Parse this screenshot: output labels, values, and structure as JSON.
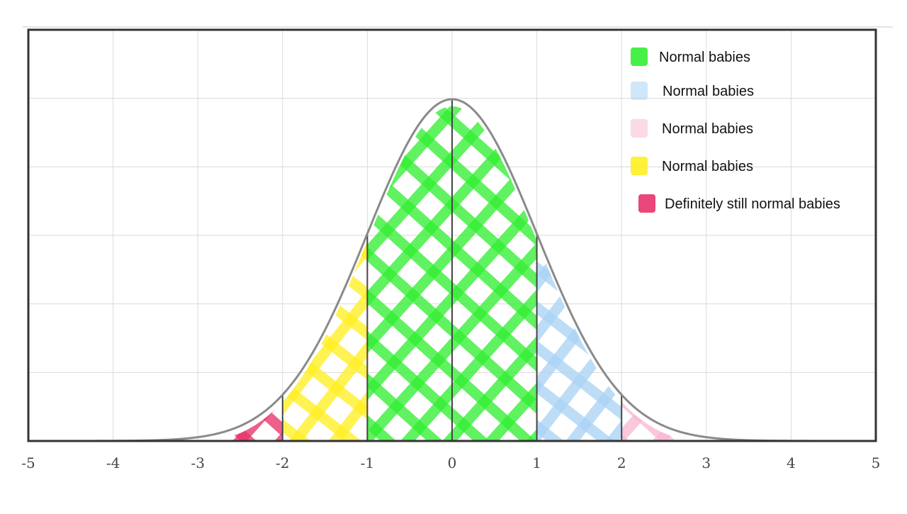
{
  "chart_data": {
    "type": "area",
    "title": "",
    "xlabel": "",
    "ylabel": "",
    "xlim": [
      -5,
      5
    ],
    "ylim": [
      0,
      0.48
    ],
    "x_ticks": [
      -5,
      -4,
      -3,
      -2,
      -1,
      0,
      1,
      2,
      3,
      4,
      5
    ],
    "x_tick_labels": [
      "-5",
      "-4",
      "-3",
      "-2",
      "-1",
      "0",
      "1",
      "2",
      "3",
      "4",
      "5"
    ],
    "y_gridlines": [
      0.08,
      0.16,
      0.24,
      0.32,
      0.4
    ],
    "grid": true,
    "curve": "standard normal density",
    "std_dev_lines": [
      -2,
      -1,
      0,
      1,
      2
    ],
    "regions": [
      {
        "name": "Normal babies",
        "x_range": [
          -1,
          1
        ],
        "color": "#33ee33"
      },
      {
        "name": "Normal babies",
        "x_range": [
          1,
          2
        ],
        "color": "#aad4f5"
      },
      {
        "name": "Normal babies",
        "x_range": [
          2,
          2.8
        ],
        "color": "#f8b9d4"
      },
      {
        "name": "Normal babies",
        "x_range": [
          -2,
          -1
        ],
        "color": "#ffee22"
      },
      {
        "name": "Definitely still normal babies",
        "x_range": [
          -2.8,
          -2
        ],
        "color": "#e8336b"
      }
    ],
    "legend": {
      "position": "top-right",
      "entries": [
        {
          "label": "Normal babies",
          "color": "#33ee33"
        },
        {
          "label": "Normal babies",
          "color": "#aad4f5"
        },
        {
          "label": "Normal babies",
          "color": "#f8b9d4"
        },
        {
          "label": "Normal babies",
          "color": "#ffee22"
        },
        {
          "label": "Definitely still normal babies",
          "color": "#e8336b"
        }
      ]
    }
  }
}
